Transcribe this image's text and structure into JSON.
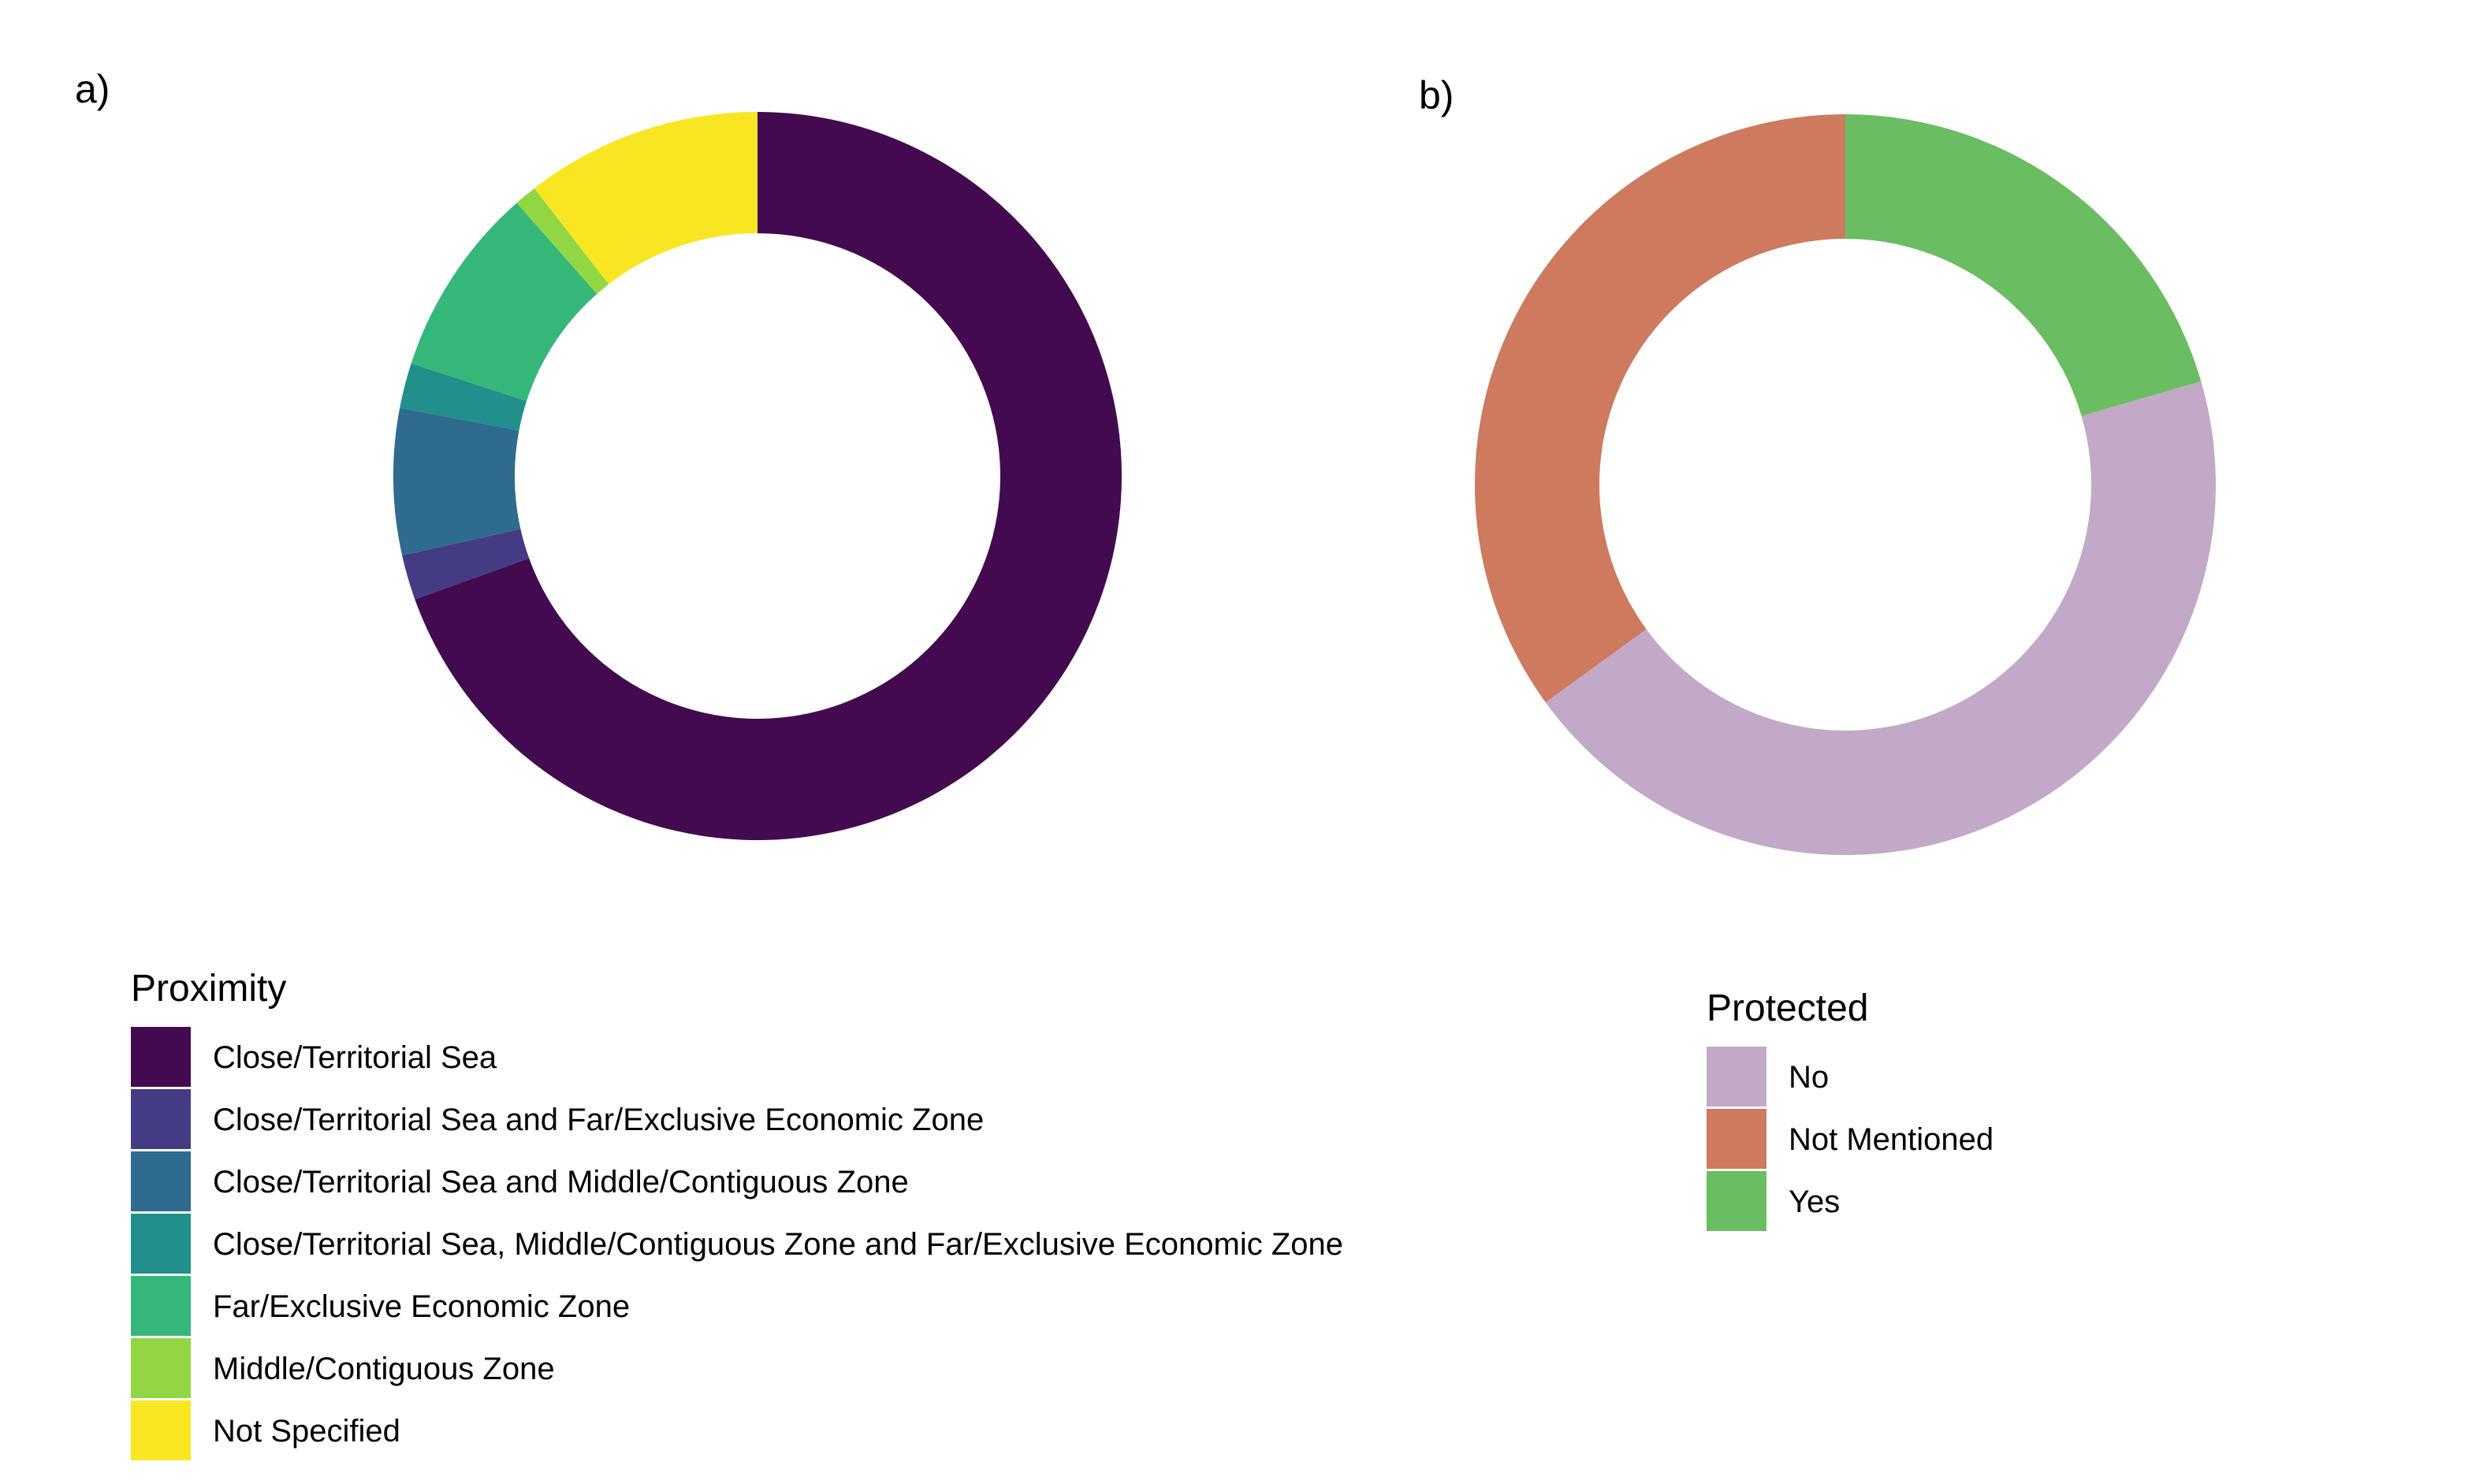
{
  "figure": {
    "panels": [
      {
        "label": "a)"
      },
      {
        "label": "b)"
      }
    ]
  },
  "chart_data": [
    {
      "type": "pie",
      "variant": "donut",
      "panel": "a)",
      "legend_title": "Proximity",
      "legend_position": "bottom-left",
      "start": "top, clockwise",
      "slices": [
        {
          "label": "Close/Territorial Sea",
          "value": 69.5,
          "color": "#440a4f"
        },
        {
          "label": "Close/Territorial Sea and Far/Exclusive Economic Zone",
          "value": 2.0,
          "color": "#433c84"
        },
        {
          "label": "Close/Territorial Sea and Middle/Contiguous Zone",
          "value": 6.5,
          "color": "#2e6b8e"
        },
        {
          "label": "Close/Territorial Sea, Middle/Contiguous Zone and Far/Exclusive Economic Zone",
          "value": 2.0,
          "color": "#218f8b"
        },
        {
          "label": "Far/Exclusive Economic Zone",
          "value": 8.5,
          "color": "#35b779"
        },
        {
          "label": "Middle/Contiguous Zone",
          "value": 1.0,
          "color": "#90d743"
        },
        {
          "label": "Not Specified",
          "value": 10.5,
          "color": "#f8e622"
        }
      ]
    },
    {
      "type": "pie",
      "variant": "donut",
      "panel": "b)",
      "legend_title": "Protected",
      "legend_position": "bottom-center",
      "start": "top, clockwise",
      "slices": [
        {
          "label": "No",
          "value": 44.5,
          "color": "#c2a9c7"
        },
        {
          "label": "Not Mentioned",
          "value": 35.0,
          "color": "#cd7a5f"
        },
        {
          "label": "Yes",
          "value": 20.5,
          "color": "#6abd61"
        }
      ],
      "draw_order": [
        "Yes",
        "No",
        "Not Mentioned"
      ]
    }
  ]
}
